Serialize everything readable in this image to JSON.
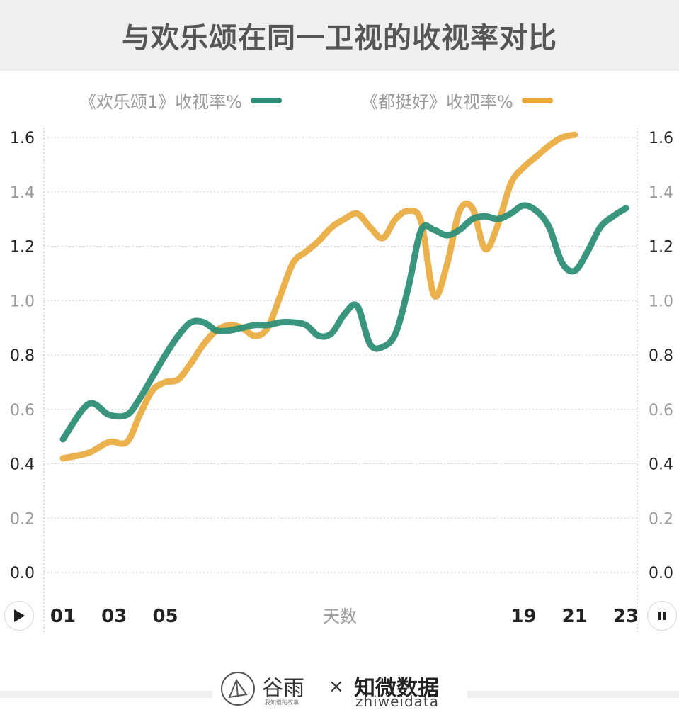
{
  "title": "与欢乐颂在同一卫视的收视率对比",
  "legend": {
    "series1": "《欢乐颂1》收视率%",
    "series2": "《都挺好》收视率%"
  },
  "colors": {
    "series1": "#2e8f76",
    "series2": "#e8a93a",
    "title_bg": "#efefef"
  },
  "chart_data": {
    "type": "line",
    "title": "与欢乐颂在同一卫视的收视率对比",
    "xlabel": "天数",
    "ylabel": "",
    "ylim": [
      0,
      1.6
    ],
    "yticks": [
      "0.0",
      "0.2",
      "0.4",
      "0.6",
      "0.8",
      "1.0",
      "1.2",
      "1.4",
      "1.6"
    ],
    "ytick_emphasis": [
      true,
      false,
      true,
      false,
      true,
      false,
      true,
      false,
      true
    ],
    "x_visible_ticks": [
      "01",
      "03",
      "05",
      "19",
      "21",
      "23"
    ],
    "xlim": [
      1,
      23
    ],
    "grid": true,
    "legend_position": "top",
    "series": [
      {
        "name": "《欢乐颂1》收视率%",
        "x": [
          1,
          2,
          2.8,
          3.5,
          4,
          4.5,
          5,
          5.5,
          6,
          6.5,
          7,
          7.5,
          8,
          8.5,
          9,
          9.5,
          10,
          10.5,
          11,
          11.5,
          12,
          12.5,
          13,
          13.5,
          14,
          14.5,
          15,
          15.5,
          16,
          16.5,
          17,
          17.5,
          18,
          18.5,
          19,
          19.5,
          20,
          20.5,
          21,
          21.5,
          22,
          22.5,
          23
        ],
        "values": [
          0.49,
          0.62,
          0.58,
          0.58,
          0.64,
          0.72,
          0.8,
          0.87,
          0.92,
          0.92,
          0.89,
          0.89,
          0.9,
          0.91,
          0.91,
          0.92,
          0.92,
          0.91,
          0.87,
          0.88,
          0.95,
          0.98,
          0.84,
          0.83,
          0.88,
          1.05,
          1.26,
          1.26,
          1.24,
          1.26,
          1.3,
          1.31,
          1.3,
          1.32,
          1.35,
          1.33,
          1.27,
          1.14,
          1.11,
          1.18,
          1.27,
          1.31,
          1.34
        ]
      },
      {
        "name": "《都挺好》收视率%",
        "x": [
          1,
          2,
          2.8,
          3.5,
          4,
          4.5,
          5,
          5.5,
          6,
          6.5,
          7,
          7.5,
          8,
          8.5,
          9,
          9.5,
          10,
          10.5,
          11,
          11.5,
          12,
          12.5,
          13,
          13.5,
          14,
          14.5,
          15,
          15.5,
          16,
          16.5,
          17,
          17.5,
          18,
          18.5,
          19,
          19.5,
          20,
          20.5,
          21
        ],
        "values": [
          0.42,
          0.44,
          0.48,
          0.48,
          0.58,
          0.67,
          0.7,
          0.71,
          0.77,
          0.84,
          0.89,
          0.91,
          0.9,
          0.87,
          0.9,
          1.02,
          1.14,
          1.18,
          1.22,
          1.27,
          1.3,
          1.32,
          1.27,
          1.23,
          1.3,
          1.33,
          1.29,
          1.02,
          1.13,
          1.33,
          1.34,
          1.19,
          1.28,
          1.43,
          1.49,
          1.53,
          1.57,
          1.6,
          1.61
        ]
      }
    ]
  },
  "controls": {
    "play_icon": "play-icon",
    "pause_icon": "pause-icon"
  },
  "footer": {
    "logo1_text": "谷雨",
    "logo1_sub": "我知道的故事",
    "cross": "×",
    "logo2_text": "知微数据",
    "logo2_sub": "zhiweidata"
  }
}
